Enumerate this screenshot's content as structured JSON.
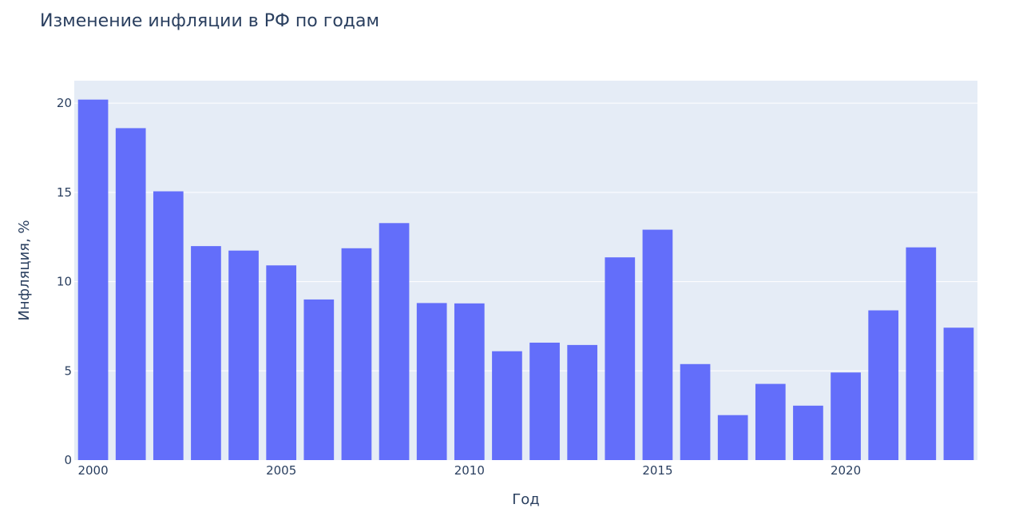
{
  "chart_data": {
    "type": "bar",
    "title": "Изменение инфляции в РФ по годам",
    "xlabel": "Год",
    "ylabel": "Инфляция, %",
    "x": [
      2000,
      2001,
      2002,
      2003,
      2004,
      2005,
      2006,
      2007,
      2008,
      2009,
      2010,
      2011,
      2012,
      2013,
      2014,
      2015,
      2016,
      2017,
      2018,
      2019,
      2020,
      2021,
      2022,
      2023
    ],
    "values": [
      20.2,
      18.6,
      15.06,
      11.99,
      11.74,
      10.91,
      9.0,
      11.87,
      13.28,
      8.8,
      8.78,
      6.1,
      6.58,
      6.45,
      11.36,
      12.91,
      5.38,
      2.52,
      4.27,
      3.05,
      4.91,
      8.39,
      11.92,
      7.42
    ],
    "xticks": [
      "2000",
      "2005",
      "2010",
      "2015",
      "2020"
    ],
    "yticks": [
      "0",
      "5",
      "10",
      "15",
      "20"
    ],
    "ylim": [
      0,
      21.26
    ],
    "xlim": [
      1999.5,
      2023.5
    ],
    "grid": true,
    "colors": {
      "bar": "#636efa",
      "plot_bg": "#e5ecf6",
      "grid": "#ffffff",
      "text": "#2a3f5f"
    }
  }
}
